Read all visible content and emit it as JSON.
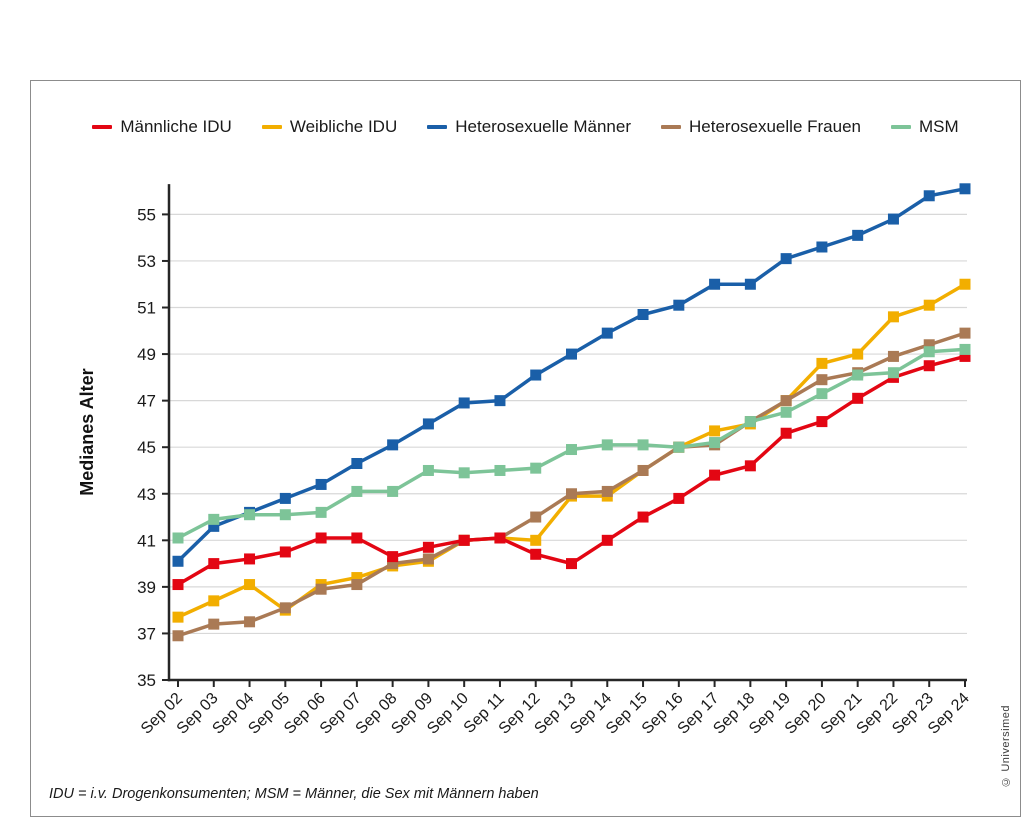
{
  "chart_data": {
    "type": "line",
    "title": "",
    "xlabel": "",
    "ylabel": "Medianes Alter",
    "categories": [
      "Sep 02",
      "Sep 03",
      "Sep 04",
      "Sep 05",
      "Sep 06",
      "Sep 07",
      "Sep 08",
      "Sep 09",
      "Sep 10",
      "Sep 11",
      "Sep 12",
      "Sep 13",
      "Sep 14",
      "Sep 15",
      "Sep 16",
      "Sep 17",
      "Sep 18",
      "Sep 19",
      "Sep 20",
      "Sep 21",
      "Sep 22",
      "Sep 23",
      "Sep 24"
    ],
    "yticks": [
      35,
      37,
      39,
      41,
      43,
      45,
      47,
      49,
      51,
      53,
      55
    ],
    "ylim": [
      35,
      56.3
    ],
    "grid": true,
    "legend_position": "top",
    "marker": "square",
    "draw_order": [
      2,
      1,
      3,
      0,
      4
    ],
    "series": [
      {
        "name": "Männliche IDU",
        "color": "#e30613",
        "values": [
          39.1,
          40.0,
          40.2,
          40.5,
          41.1,
          41.1,
          40.3,
          40.7,
          41.0,
          41.1,
          40.4,
          40.0,
          41.0,
          42.0,
          42.8,
          43.8,
          44.2,
          45.6,
          46.1,
          47.1,
          48.0,
          48.5,
          48.9
        ]
      },
      {
        "name": "Weibliche IDU",
        "color": "#f2ae00",
        "values": [
          37.7,
          38.4,
          39.1,
          38.0,
          39.1,
          39.4,
          39.9,
          40.1,
          41.0,
          41.1,
          41.0,
          42.9,
          42.9,
          44.0,
          45.0,
          45.7,
          46.0,
          47.0,
          48.6,
          49.0,
          50.6,
          51.1,
          52.0
        ]
      },
      {
        "name": "Heterosexuelle Männer",
        "color": "#1a5fa8",
        "values": [
          40.1,
          41.6,
          42.2,
          42.8,
          43.4,
          44.3,
          45.1,
          46.0,
          46.9,
          47.0,
          48.1,
          49.0,
          49.9,
          50.7,
          51.1,
          52.0,
          52.0,
          53.1,
          53.6,
          54.1,
          54.8,
          55.8,
          56.1
        ]
      },
      {
        "name": "Heterosexuelle Frauen",
        "color": "#aa7a55",
        "values": [
          36.9,
          37.4,
          37.5,
          38.1,
          38.9,
          39.1,
          40.0,
          40.2,
          41.0,
          41.1,
          42.0,
          43.0,
          43.1,
          44.0,
          45.0,
          45.1,
          46.1,
          47.0,
          47.9,
          48.2,
          48.9,
          49.4,
          49.9
        ]
      },
      {
        "name": "MSM",
        "color": "#7dc498",
        "values": [
          41.1,
          41.9,
          42.1,
          42.1,
          42.2,
          43.1,
          43.1,
          44.0,
          43.9,
          44.0,
          44.1,
          44.9,
          45.1,
          45.1,
          45.0,
          45.2,
          46.1,
          46.5,
          47.3,
          48.1,
          48.2,
          49.1,
          49.2
        ]
      }
    ]
  },
  "footnote": "IDU = i.v. Drogenkonsumenten; MSM = Männer, die Sex mit Männern haben",
  "credit": "© Universimed"
}
